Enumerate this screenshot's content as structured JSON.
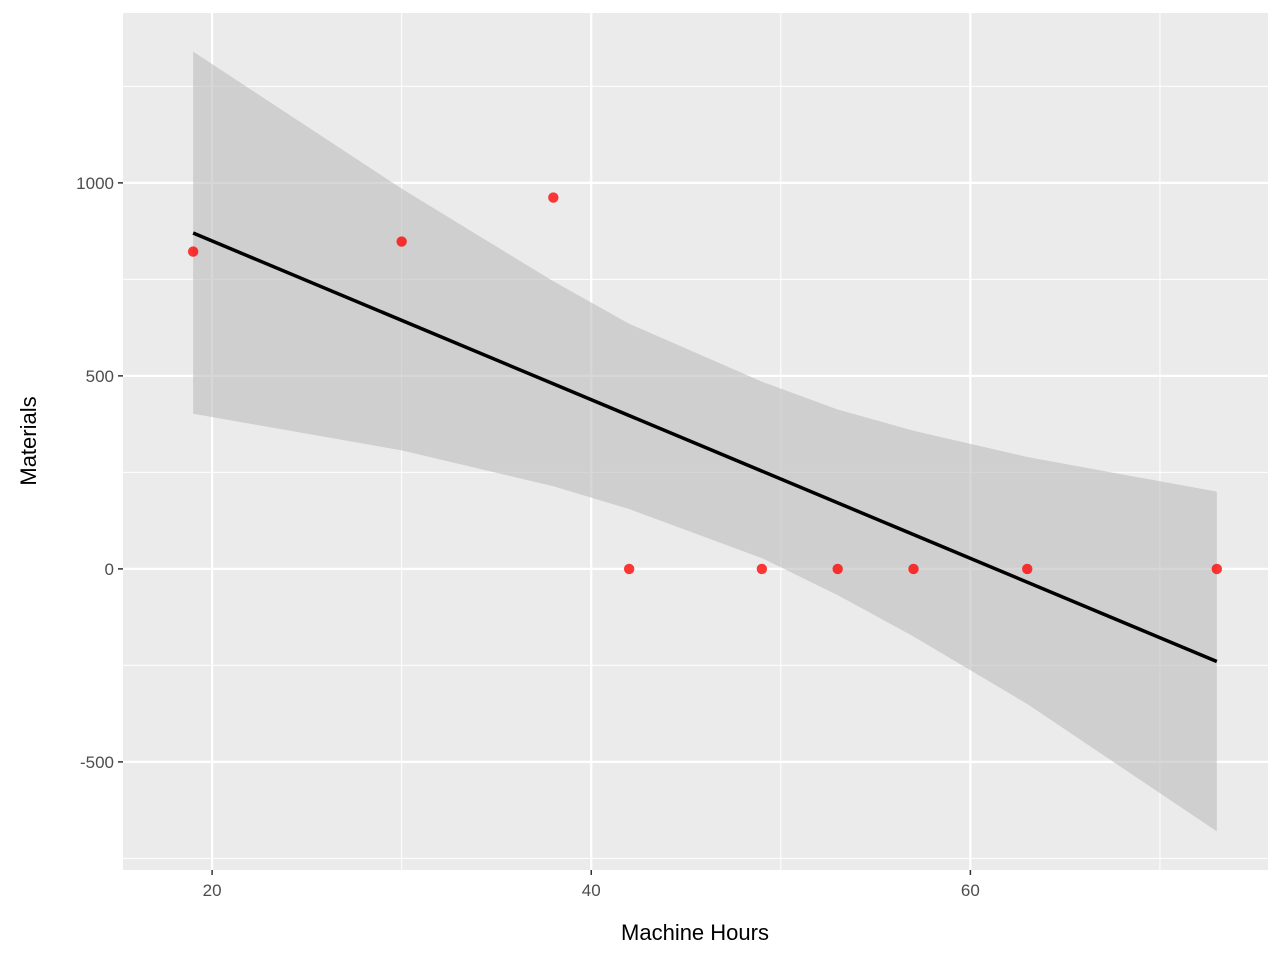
{
  "chart_data": {
    "type": "scatter",
    "title": "",
    "xlabel": "Machine Hours",
    "ylabel": "Materials",
    "xlim": [
      15.3,
      75.7
    ],
    "ylim": [
      -780,
      1440
    ],
    "x_ticks": [
      20,
      40,
      60
    ],
    "x_tick_labels": [
      "20",
      "40",
      "60"
    ],
    "y_ticks": [
      -500,
      0,
      500,
      1000
    ],
    "y_tick_labels": [
      "-500",
      "0",
      "500",
      "1000"
    ],
    "grid": true,
    "legend": "none",
    "points": [
      {
        "x": 19,
        "y": 822
      },
      {
        "x": 30,
        "y": 848
      },
      {
        "x": 38,
        "y": 962
      },
      {
        "x": 42,
        "y": 0
      },
      {
        "x": 49,
        "y": 0
      },
      {
        "x": 53,
        "y": 0
      },
      {
        "x": 57,
        "y": 0
      },
      {
        "x": 63,
        "y": 0
      },
      {
        "x": 73,
        "y": 0
      }
    ],
    "fit_line": {
      "method": "linear",
      "x": [
        19,
        73
      ],
      "y": [
        870,
        -240
      ]
    },
    "confidence_band": {
      "x": [
        19,
        30,
        38,
        42,
        49,
        53,
        57,
        63,
        73
      ],
      "upper": [
        1340,
        985,
        745,
        635,
        485,
        413,
        358,
        290,
        200
      ],
      "lower": [
        402,
        307,
        214,
        155,
        28,
        -68,
        -175,
        -350,
        -680
      ]
    },
    "colors": {
      "panel_background": "#ebebeb",
      "grid": "#ffffff",
      "points": "#ff0000",
      "line": "#000000",
      "band": "#bdbdbd"
    }
  }
}
